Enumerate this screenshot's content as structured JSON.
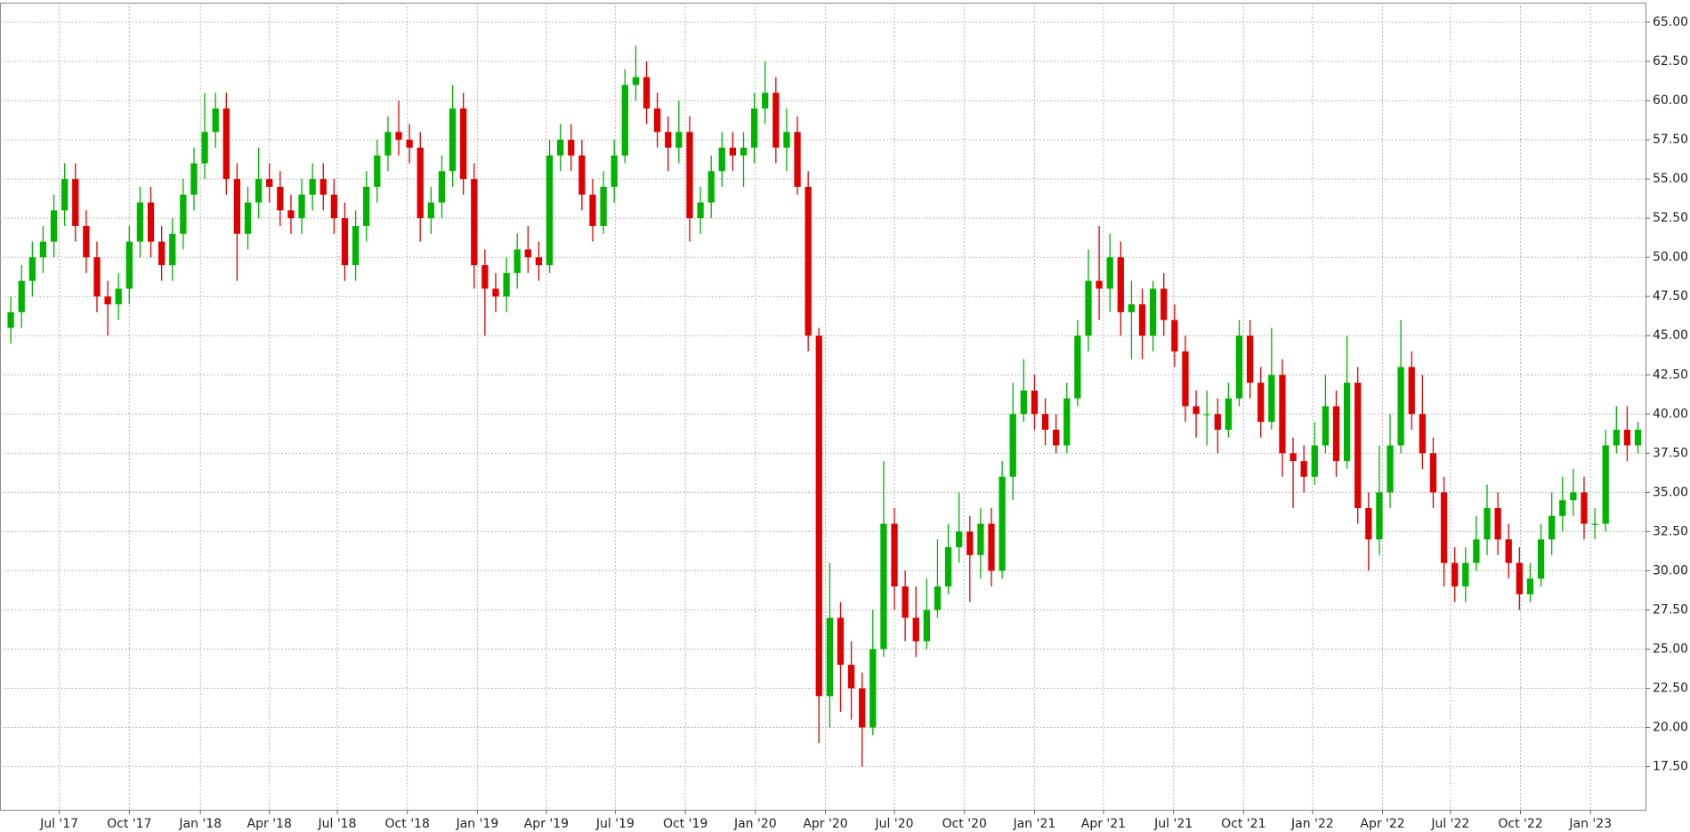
{
  "chart_data": {
    "type": "candlestick",
    "up_color": "#00b400",
    "down_color": "#e00000",
    "grid": true,
    "ylim": [
      14.75,
      66.25
    ],
    "yticks": [
      {
        "value": 17.5,
        "label": "17.50"
      },
      {
        "value": 20,
        "label": "20.00"
      },
      {
        "value": 22.5,
        "label": "22.50"
      },
      {
        "value": 25,
        "label": "25.00"
      },
      {
        "value": 27.5,
        "label": "27.50"
      },
      {
        "value": 30,
        "label": "30.00"
      },
      {
        "value": 32.5,
        "label": "32.50"
      },
      {
        "value": 35,
        "label": "35.00"
      },
      {
        "value": 37.5,
        "label": "37.50"
      },
      {
        "value": 40,
        "label": "40.00"
      },
      {
        "value": 42.5,
        "label": "42.50"
      },
      {
        "value": 45,
        "label": "45.00"
      },
      {
        "value": 47.5,
        "label": "47.50"
      },
      {
        "value": 50,
        "label": "50.00"
      },
      {
        "value": 52.5,
        "label": "52.50"
      },
      {
        "value": 55,
        "label": "55.00"
      },
      {
        "value": 57.5,
        "label": "57.50"
      },
      {
        "value": 60,
        "label": "60.00"
      },
      {
        "value": 62.5,
        "label": "62.50"
      },
      {
        "value": 65,
        "label": "65.00"
      }
    ],
    "xlim": [
      -1,
      151.7
    ],
    "xticks": [
      {
        "value": 4.5,
        "label": "Jul '17"
      },
      {
        "value": 11,
        "label": "Oct '17"
      },
      {
        "value": 17.6,
        "label": "Jan '18"
      },
      {
        "value": 24,
        "label": "Apr '18"
      },
      {
        "value": 30.3,
        "label": "Jul '18"
      },
      {
        "value": 36.8,
        "label": "Oct '18"
      },
      {
        "value": 43.3,
        "label": "Jan '19"
      },
      {
        "value": 49.7,
        "label": "Apr '19"
      },
      {
        "value": 56.1,
        "label": "Jul '19"
      },
      {
        "value": 62.6,
        "label": "Oct '19"
      },
      {
        "value": 69.1,
        "label": "Jan '20"
      },
      {
        "value": 75.6,
        "label": "Apr '20"
      },
      {
        "value": 82,
        "label": "Jul '20"
      },
      {
        "value": 88.5,
        "label": "Oct '20"
      },
      {
        "value": 95,
        "label": "Jan '21"
      },
      {
        "value": 101.4,
        "label": "Apr '21"
      },
      {
        "value": 107.9,
        "label": "Jul '21"
      },
      {
        "value": 114.4,
        "label": "Oct '21"
      },
      {
        "value": 120.8,
        "label": "Jan '22"
      },
      {
        "value": 127.3,
        "label": "Apr '22"
      },
      {
        "value": 133.6,
        "label": "Jul '22"
      },
      {
        "value": 140.1,
        "label": "Oct '22"
      },
      {
        "value": 146.6,
        "label": "Jan '23"
      }
    ],
    "open": [
      45.5,
      46.5,
      48.5,
      50,
      51,
      53,
      55,
      52,
      50,
      47.5,
      47,
      48,
      51,
      53.5,
      51,
      49.5,
      51.5,
      54,
      56,
      58,
      59.5,
      55,
      51.5,
      53.5,
      55,
      54.5,
      53,
      52.5,
      54,
      55,
      54,
      52.5,
      49.5,
      52,
      54.5,
      56.5,
      58,
      57.5,
      57,
      52.5,
      53.5,
      55.5,
      59.5,
      55,
      49.5,
      48,
      47.5,
      49,
      50.5,
      50,
      49.5,
      56.5,
      57.5,
      56.5,
      54,
      52,
      54.5,
      56.5,
      61,
      61.5,
      59.5,
      58,
      57,
      58,
      52.5,
      53.5,
      55.5,
      57,
      56.5,
      57,
      59.5,
      60.5,
      57,
      58,
      54.5,
      45,
      22,
      27,
      24,
      22.5,
      20,
      25,
      33,
      29,
      27,
      25.5,
      27.5,
      29,
      31.5,
      32.5,
      31,
      33,
      30,
      36,
      40,
      41.5,
      40,
      39,
      38,
      41,
      45,
      48.5,
      48,
      50,
      46.5,
      47,
      45,
      48,
      46,
      44,
      40.5,
      40,
      40,
      39,
      41,
      45,
      42,
      39.5,
      42.5,
      37.5,
      37,
      36,
      38,
      40.5,
      37,
      42,
      34,
      32,
      35,
      38,
      43,
      40,
      37.5,
      35,
      30.5,
      29,
      30.5,
      32,
      34,
      32,
      30.5,
      28.5,
      29.5,
      32,
      33.5,
      34.5,
      35,
      33,
      33,
      38,
      39,
      38
    ],
    "high": [
      47.5,
      49.5,
      51,
      52,
      54,
      56,
      56,
      53,
      51,
      48.5,
      49,
      52,
      54.5,
      54.5,
      52,
      52.5,
      55,
      57,
      60.5,
      60.5,
      60.5,
      56,
      54.5,
      57,
      56,
      55.5,
      54,
      55,
      56,
      56,
      55,
      53.5,
      53,
      55.5,
      57.5,
      59,
      60,
      58.5,
      58,
      54.5,
      56.5,
      61,
      60.5,
      56,
      50.5,
      49,
      50,
      51.5,
      52,
      51,
      57.5,
      58.5,
      58.5,
      57.5,
      55,
      55.5,
      57.5,
      62,
      63.5,
      62.5,
      60.5,
      59,
      60,
      59,
      54.5,
      56.5,
      58,
      58,
      58,
      60.5,
      62.5,
      61.5,
      59.5,
      59,
      55.5,
      45.5,
      30.5,
      28,
      25.5,
      23.5,
      27.5,
      37,
      34,
      30,
      29,
      29.5,
      32,
      33,
      35,
      33.5,
      34,
      34,
      37,
      42,
      43.5,
      42.5,
      41,
      40,
      42,
      46,
      50.5,
      52,
      51.5,
      51,
      48.5,
      48,
      48.5,
      49,
      47,
      45,
      41.5,
      41.5,
      41,
      42,
      46,
      46,
      43,
      45.5,
      43.5,
      38.5,
      38,
      39.5,
      42.5,
      41.5,
      45,
      43,
      35,
      38,
      40,
      46,
      44,
      42.5,
      38.5,
      36,
      31.5,
      31.5,
      33.5,
      35.5,
      35,
      33,
      31.5,
      30.5,
      33,
      35,
      36,
      36.5,
      36,
      34,
      39,
      40.5,
      40.5,
      39.5
    ],
    "low": [
      44.5,
      45.5,
      47.5,
      49,
      50,
      52,
      51,
      49,
      46.5,
      45,
      46,
      47,
      50,
      50,
      48.5,
      48.5,
      50.5,
      53,
      55,
      57,
      54,
      48.5,
      50.5,
      52.5,
      53.5,
      52,
      51.5,
      51.5,
      53,
      53,
      51.5,
      48.5,
      48.5,
      51,
      53.5,
      55.5,
      56.5,
      56,
      51,
      51.5,
      52.5,
      54.5,
      54,
      48,
      45,
      46.5,
      46.5,
      48,
      49,
      48.5,
      49,
      55.5,
      55.5,
      53,
      51,
      51.5,
      53.5,
      56,
      60,
      58.5,
      57,
      55.5,
      56,
      51,
      51.5,
      52.5,
      54.5,
      55.5,
      54.5,
      56,
      58.5,
      56,
      55.5,
      54,
      44,
      19,
      20,
      21,
      20.5,
      17.5,
      19.5,
      24.5,
      27.5,
      25.5,
      24.5,
      25,
      27,
      28.5,
      30.5,
      28,
      29.5,
      29,
      29.5,
      34.5,
      39.5,
      39,
      38,
      37.5,
      37.5,
      40.5,
      44,
      46,
      46.5,
      45,
      43.5,
      43.5,
      44,
      45,
      43,
      39.5,
      38.5,
      38,
      37.5,
      38.5,
      40.5,
      41,
      38.5,
      39,
      36,
      34,
      35,
      35.5,
      37.5,
      36,
      36.5,
      33,
      30,
      31,
      34,
      37.5,
      39,
      36.5,
      34,
      29,
      28,
      28,
      30,
      31,
      31,
      29.5,
      27.5,
      28,
      29,
      31,
      32.5,
      33.5,
      32,
      32,
      32.5,
      37.5,
      37,
      37.5
    ],
    "close": [
      46.5,
      48.5,
      50,
      51,
      53,
      55,
      52,
      50,
      47.5,
      47,
      48,
      51,
      53.5,
      51,
      49.5,
      51.5,
      54,
      56,
      58,
      59.5,
      55,
      51.5,
      53.5,
      55,
      54.5,
      53,
      52.5,
      54,
      55,
      54,
      52.5,
      49.5,
      52,
      54.5,
      56.5,
      58,
      57.5,
      57,
      52.5,
      53.5,
      55.5,
      59.5,
      55,
      49.5,
      48,
      47.5,
      49,
      50.5,
      50,
      49.5,
      56.5,
      57.5,
      56.5,
      54,
      52,
      54.5,
      56.5,
      61,
      61.5,
      59.5,
      58,
      57,
      58,
      52.5,
      53.5,
      55.5,
      57,
      56.5,
      57,
      59.5,
      60.5,
      57,
      58,
      54.5,
      45,
      22,
      27,
      24,
      22.5,
      20,
      25,
      33,
      29,
      27,
      25.5,
      27.5,
      29,
      31.5,
      32.5,
      31,
      33,
      30,
      36,
      40,
      41.5,
      40,
      39,
      38,
      41,
      45,
      48.5,
      48,
      50,
      46.5,
      47,
      45,
      48,
      46,
      44,
      40.5,
      40,
      40,
      39,
      41,
      45,
      42,
      39.5,
      42.5,
      37.5,
      37,
      36,
      38,
      40.5,
      37,
      42,
      34,
      32,
      35,
      38,
      43,
      40,
      37.5,
      35,
      30.5,
      29,
      30.5,
      32,
      34,
      32,
      30.5,
      28.5,
      29.5,
      32,
      33.5,
      34.5,
      35,
      33,
      33,
      38,
      39,
      38,
      39
    ]
  }
}
